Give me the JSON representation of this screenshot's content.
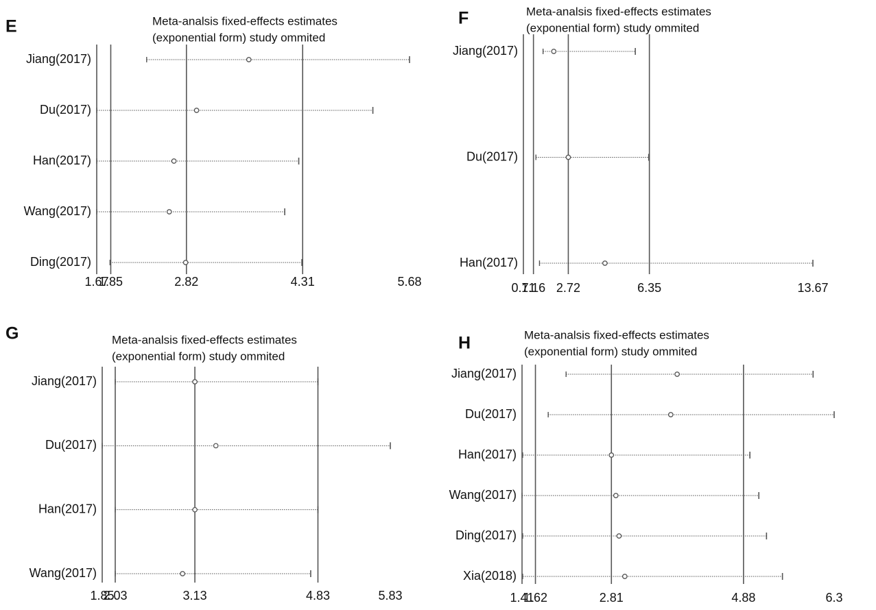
{
  "chart_data": [
    {
      "type": "forest",
      "panel": "E",
      "title": [
        "Meta-analsis fixed-effects estimates",
        "(exponential form) study ommited"
      ],
      "categories": [
        "Jiang(2017)",
        "Du(2017)",
        "Han(2017)",
        "Wang(2017)",
        "Ding(2017)"
      ],
      "estimate": [
        3.62,
        2.95,
        2.66,
        2.6,
        2.81
      ],
      "lower": [
        2.31,
        1.67,
        1.67,
        1.67,
        1.84
      ],
      "upper": [
        5.68,
        5.21,
        4.26,
        4.08,
        4.3
      ],
      "xlim": [
        1.67,
        5.68
      ],
      "xticks": [
        1.67,
        1.85,
        2.82,
        4.31,
        5.68
      ],
      "color": "#555555"
    },
    {
      "type": "forest",
      "panel": "F",
      "title": [
        "Meta-analsis fixed-effects estimates",
        "(exponential form) study ommited"
      ],
      "categories": [
        "Jiang(2017)",
        "Du(2017)",
        "Han(2017)"
      ],
      "estimate": [
        2.07,
        2.72,
        4.36
      ],
      "lower": [
        1.59,
        1.27,
        1.43
      ],
      "upper": [
        5.72,
        6.32,
        13.67
      ],
      "xlim": [
        0.71,
        13.67
      ],
      "xticks": [
        0.71,
        1.16,
        2.72,
        6.35,
        13.67
      ],
      "color": "#555555"
    },
    {
      "type": "forest",
      "panel": "G",
      "title": [
        "Meta-analsis fixed-effects estimates",
        "(exponential form) study ommited"
      ],
      "categories": [
        "Jiang(2017)",
        "Du(2017)",
        "Han(2017)",
        "Wang(2017)"
      ],
      "estimate": [
        3.13,
        3.42,
        3.13,
        2.96
      ],
      "lower": [
        2.03,
        1.85,
        2.03,
        2.03
      ],
      "upper": [
        4.83,
        5.83,
        4.83,
        4.73
      ],
      "xlim": [
        1.85,
        5.83
      ],
      "xticks": [
        1.85,
        2.03,
        3.13,
        4.83,
        5.83
      ],
      "color": "#555555"
    },
    {
      "type": "forest",
      "panel": "H",
      "title": [
        "Meta-analsis fixed-effects estimates",
        "(exponential form) study ommited"
      ],
      "categories": [
        "Jiang(2017)",
        "Du(2017)",
        "Han(2017)",
        "Wang(2017)",
        "Ding(2017)",
        "Xia(2018)"
      ],
      "estimate": [
        3.84,
        3.74,
        2.81,
        2.88,
        2.93,
        3.02
      ],
      "lower": [
        2.1,
        1.82,
        1.42,
        1.41,
        1.42,
        1.42
      ],
      "upper": [
        5.97,
        6.3,
        4.98,
        5.12,
        5.24,
        5.49
      ],
      "xlim": [
        1.41,
        6.3
      ],
      "xticks": [
        1.41,
        1.62,
        2.81,
        4.88,
        6.3
      ],
      "color": "#555555"
    }
  ]
}
